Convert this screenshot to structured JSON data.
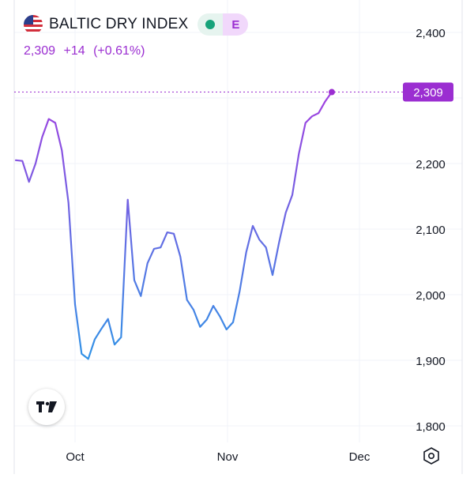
{
  "header": {
    "title": "BALTIC DRY INDEX",
    "badge_letter": "E",
    "price": "2,309",
    "change": "+14",
    "change_pct": "(+0.61%)"
  },
  "icons": {
    "flag": "us-flag-icon",
    "market_status": "green-dot-icon",
    "logo": "tradingview-logo-icon",
    "settings": "settings-hexagon-icon"
  },
  "colors": {
    "line_top": "#a43ee0",
    "line_bottom": "#2f94e6",
    "accent": "#9b2ed1"
  },
  "chart_data": {
    "type": "line",
    "title": "",
    "xlabel": "",
    "ylabel": "",
    "last_value_label": "2,309",
    "ylim": [
      1780,
      2450
    ],
    "y_ticks": [
      1800,
      1900,
      2000,
      2100,
      2200,
      2400
    ],
    "y_tick_labels": [
      "1,800",
      "1,900",
      "2,000",
      "2,100",
      "2,200",
      "2,400"
    ],
    "x_ticks": [
      {
        "label": "Oct",
        "index": 10
      },
      {
        "label": "Nov",
        "index": 33
      },
      {
        "label": "Dec",
        "index": 53
      }
    ],
    "x_range": [
      0,
      60
    ],
    "grid": true,
    "series": [
      {
        "values": [
          2205,
          2204,
          2172,
          2200,
          2240,
          2268,
          2262,
          2220,
          2140,
          1985,
          1910,
          1902,
          1932,
          1948,
          1963,
          1924,
          1935,
          2145,
          2022,
          1998,
          2048,
          2070,
          2072,
          2095,
          2093,
          2058,
          1992,
          1977,
          1951,
          1962,
          1983,
          1967,
          1947,
          1958,
          2005,
          2065,
          2105,
          2084,
          2072,
          2030,
          2080,
          2125,
          2152,
          2215,
          2262,
          2272,
          2277,
          2295,
          2309
        ]
      }
    ]
  }
}
